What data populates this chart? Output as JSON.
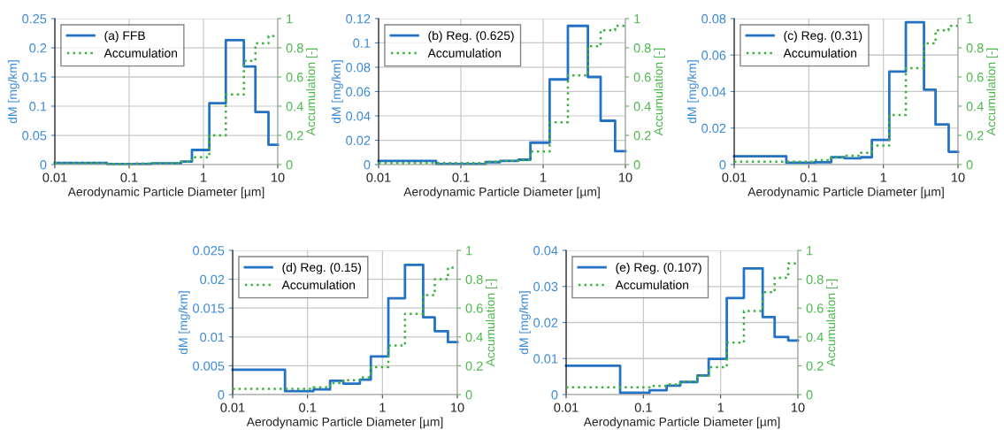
{
  "chart_data": [
    {
      "type": "step",
      "x": [
        0.01,
        0.05,
        0.12,
        0.2,
        0.3,
        0.5,
        0.7,
        1.2,
        2,
        3.5,
        5,
        7.5,
        10
      ],
      "xlabel": "Aerodynamic Particle Diameter [µm]",
      "ylabel": "dM [mg/km]",
      "y2label": "Accumulation [-]",
      "log": "x",
      "grid": true,
      "legend": "top left",
      "line_style": "solid",
      "xlim": [
        0.01,
        10
      ],
      "xticks": [
        0.01,
        0.1,
        1,
        10
      ],
      "ylim": [
        0,
        0.25
      ],
      "yticks": [
        0,
        0.05,
        0.1,
        0.15,
        0.2,
        0.25
      ],
      "y2lim": [
        0,
        1
      ],
      "y2ticks": [
        0,
        0.2,
        0.4,
        0.6,
        0.8,
        1
      ],
      "series": [
        {
          "name": "(a) FFB",
          "color": "#2372c4",
          "values": [
            0.003,
            0.001,
            0.001,
            0.002,
            0.002,
            0.005,
            0.025,
            0.105,
            0.213,
            0.168,
            0.09,
            0.034,
            0.034
          ]
        },
        {
          "name": "Accumulation",
          "color": "#3cb33c",
          "axis": "y2",
          "line_style": "dotted",
          "values": [
            0.01,
            0.005,
            0.007,
            0.01,
            0.01,
            0.02,
            0.05,
            0.2,
            0.48,
            0.71,
            0.83,
            0.88,
            0.88
          ]
        }
      ]
    },
    {
      "type": "step",
      "x": [
        0.01,
        0.05,
        0.12,
        0.2,
        0.3,
        0.5,
        0.7,
        1.2,
        2,
        3.5,
        5,
        7.5,
        10
      ],
      "xlabel": "Aerodynamic Particle Diameter [µm]",
      "ylabel": "dM [mg/km]",
      "y2label": "Accumulation [-]",
      "log": "x",
      "grid": true,
      "legend": "top left",
      "line_style": "solid",
      "xlim": [
        0.01,
        10
      ],
      "xticks": [
        0.01,
        0.1,
        1,
        10
      ],
      "ylim": [
        0,
        0.12
      ],
      "yticks": [
        0,
        0.02,
        0.04,
        0.06,
        0.08,
        0.1,
        0.12
      ],
      "y2lim": [
        0,
        1
      ],
      "y2ticks": [
        0,
        0.2,
        0.4,
        0.6,
        0.8,
        1
      ],
      "series": [
        {
          "name": "(b) Reg. (0.625)",
          "color": "#2372c4",
          "values": [
            0.003,
            0.0005,
            0.0005,
            0.002,
            0.003,
            0.004,
            0.018,
            0.07,
            0.114,
            0.072,
            0.036,
            0.011,
            0.011
          ]
        },
        {
          "name": "Accumulation",
          "color": "#3cb33c",
          "axis": "y2",
          "line_style": "dotted",
          "values": [
            0.01,
            0.01,
            0.01,
            0.02,
            0.025,
            0.03,
            0.09,
            0.29,
            0.61,
            0.81,
            0.92,
            0.95,
            0.95
          ]
        }
      ]
    },
    {
      "type": "step",
      "x": [
        0.01,
        0.05,
        0.12,
        0.2,
        0.3,
        0.5,
        0.7,
        1.2,
        2,
        3.5,
        5,
        7.5,
        10
      ],
      "xlabel": "Aerodynamic Particle Diameter [µm]",
      "ylabel": "dM [mg/km]",
      "y2label": "Accumulation [-]",
      "log": "x",
      "grid": true,
      "legend": "top left",
      "line_style": "solid",
      "xlim": [
        0.01,
        10
      ],
      "xticks": [
        0.01,
        0.1,
        1,
        10
      ],
      "ylim": [
        0,
        0.08
      ],
      "yticks": [
        0,
        0.02,
        0.04,
        0.06,
        0.08
      ],
      "y2lim": [
        0,
        1
      ],
      "y2ticks": [
        0,
        0.2,
        0.4,
        0.6,
        0.8,
        1
      ],
      "series": [
        {
          "name": "(c) Reg. (0.31)",
          "color": "#2372c4",
          "values": [
            0.0045,
            0.001,
            0.0013,
            0.004,
            0.0035,
            0.004,
            0.0135,
            0.051,
            0.078,
            0.041,
            0.022,
            0.007,
            0.007
          ]
        },
        {
          "name": "Accumulation",
          "color": "#3cb33c",
          "axis": "y2",
          "line_style": "dotted",
          "values": [
            0.02,
            0.02,
            0.03,
            0.05,
            0.06,
            0.08,
            0.13,
            0.34,
            0.66,
            0.83,
            0.92,
            0.95,
            0.95
          ]
        }
      ]
    },
    {
      "type": "step",
      "x": [
        0.01,
        0.05,
        0.12,
        0.2,
        0.3,
        0.5,
        0.7,
        1.2,
        2,
        3.5,
        5,
        7.5,
        10
      ],
      "xlabel": "Aerodynamic Particle Diameter [µm]",
      "ylabel": "dM [mg/km]",
      "y2label": "Accumulation [-]",
      "log": "x",
      "grid": true,
      "legend": "top left",
      "line_style": "solid",
      "xlim": [
        0.01,
        10
      ],
      "xticks": [
        0.01,
        0.1,
        1,
        10
      ],
      "ylim": [
        0,
        0.025
      ],
      "yticks": [
        0,
        0.005,
        0.01,
        0.015,
        0.02,
        0.025
      ],
      "y2lim": [
        0,
        1
      ],
      "y2ticks": [
        0,
        0.2,
        0.4,
        0.6,
        0.8,
        1
      ],
      "series": [
        {
          "name": "(d) Reg. (0.15)",
          "color": "#2372c4",
          "values": [
            0.0043,
            0.0006,
            0.0009,
            0.0024,
            0.0019,
            0.0026,
            0.0066,
            0.0167,
            0.0225,
            0.0134,
            0.011,
            0.0091,
            0.0091
          ]
        },
        {
          "name": "Accumulation",
          "color": "#3cb33c",
          "axis": "y2",
          "line_style": "dotted",
          "values": [
            0.04,
            0.04,
            0.05,
            0.08,
            0.1,
            0.12,
            0.19,
            0.34,
            0.56,
            0.69,
            0.8,
            0.88,
            0.88
          ]
        }
      ]
    },
    {
      "type": "step",
      "x": [
        0.01,
        0.05,
        0.12,
        0.2,
        0.3,
        0.5,
        0.7,
        1.2,
        2,
        3.5,
        5,
        7.5,
        10
      ],
      "xlabel": "Aerodynamic Particle Diameter [µm]",
      "ylabel": "dM [mg/km]",
      "y2label": "Accumulation [-]",
      "log": "x",
      "grid": true,
      "legend": "top left",
      "line_style": "solid",
      "xlim": [
        0.01,
        10
      ],
      "xticks": [
        0.01,
        0.1,
        1,
        10
      ],
      "ylim": [
        0,
        0.04
      ],
      "yticks": [
        0,
        0.01,
        0.02,
        0.03,
        0.04
      ],
      "y2lim": [
        0,
        1
      ],
      "y2ticks": [
        0,
        0.2,
        0.4,
        0.6,
        0.8,
        1
      ],
      "series": [
        {
          "name": "(e) Reg. (0.107)",
          "color": "#2372c4",
          "values": [
            0.008,
            0.0005,
            0.0012,
            0.0025,
            0.0035,
            0.0053,
            0.0099,
            0.0268,
            0.035,
            0.0215,
            0.016,
            0.015,
            0.015
          ]
        },
        {
          "name": "Accumulation",
          "color": "#3cb33c",
          "axis": "y2",
          "line_style": "dotted",
          "values": [
            0.05,
            0.05,
            0.06,
            0.07,
            0.09,
            0.13,
            0.19,
            0.36,
            0.58,
            0.71,
            0.81,
            0.91,
            0.91
          ]
        }
      ]
    }
  ]
}
